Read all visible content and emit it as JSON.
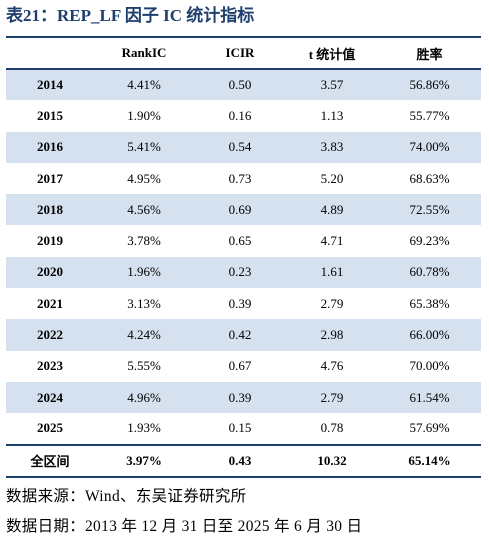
{
  "title": "表21：REP_LF 因子 IC 统计指标",
  "table": {
    "headers": [
      "",
      "RankIC",
      "ICIR",
      "t 统计值",
      "胜率"
    ],
    "rows": [
      [
        "2014",
        "4.41%",
        "0.50",
        "3.57",
        "56.86%"
      ],
      [
        "2015",
        "1.90%",
        "0.16",
        "1.13",
        "55.77%"
      ],
      [
        "2016",
        "5.41%",
        "0.54",
        "3.83",
        "74.00%"
      ],
      [
        "2017",
        "4.95%",
        "0.73",
        "5.20",
        "68.63%"
      ],
      [
        "2018",
        "4.56%",
        "0.69",
        "4.89",
        "72.55%"
      ],
      [
        "2019",
        "3.78%",
        "0.65",
        "4.71",
        "69.23%"
      ],
      [
        "2020",
        "1.96%",
        "0.23",
        "1.61",
        "60.78%"
      ],
      [
        "2021",
        "3.13%",
        "0.39",
        "2.79",
        "65.38%"
      ],
      [
        "2022",
        "4.24%",
        "0.42",
        "2.98",
        "66.00%"
      ],
      [
        "2023",
        "5.55%",
        "0.67",
        "4.76",
        "70.00%"
      ],
      [
        "2024",
        "4.96%",
        "0.39",
        "2.79",
        "61.54%"
      ],
      [
        "2025",
        "1.93%",
        "0.15",
        "0.78",
        "57.69%"
      ]
    ],
    "total": [
      "全区间",
      "3.97%",
      "0.43",
      "10.32",
      "65.14%"
    ]
  },
  "notes": {
    "source": "数据来源：Wind、东吴证券研究所",
    "date_range": "数据日期：2013 年 12 月 31 日至 2025 年 6 月 30 日"
  },
  "colors": {
    "title": "#1f3f6e",
    "stripe": "#d6e1f0",
    "rule": "#1f3f6e"
  }
}
